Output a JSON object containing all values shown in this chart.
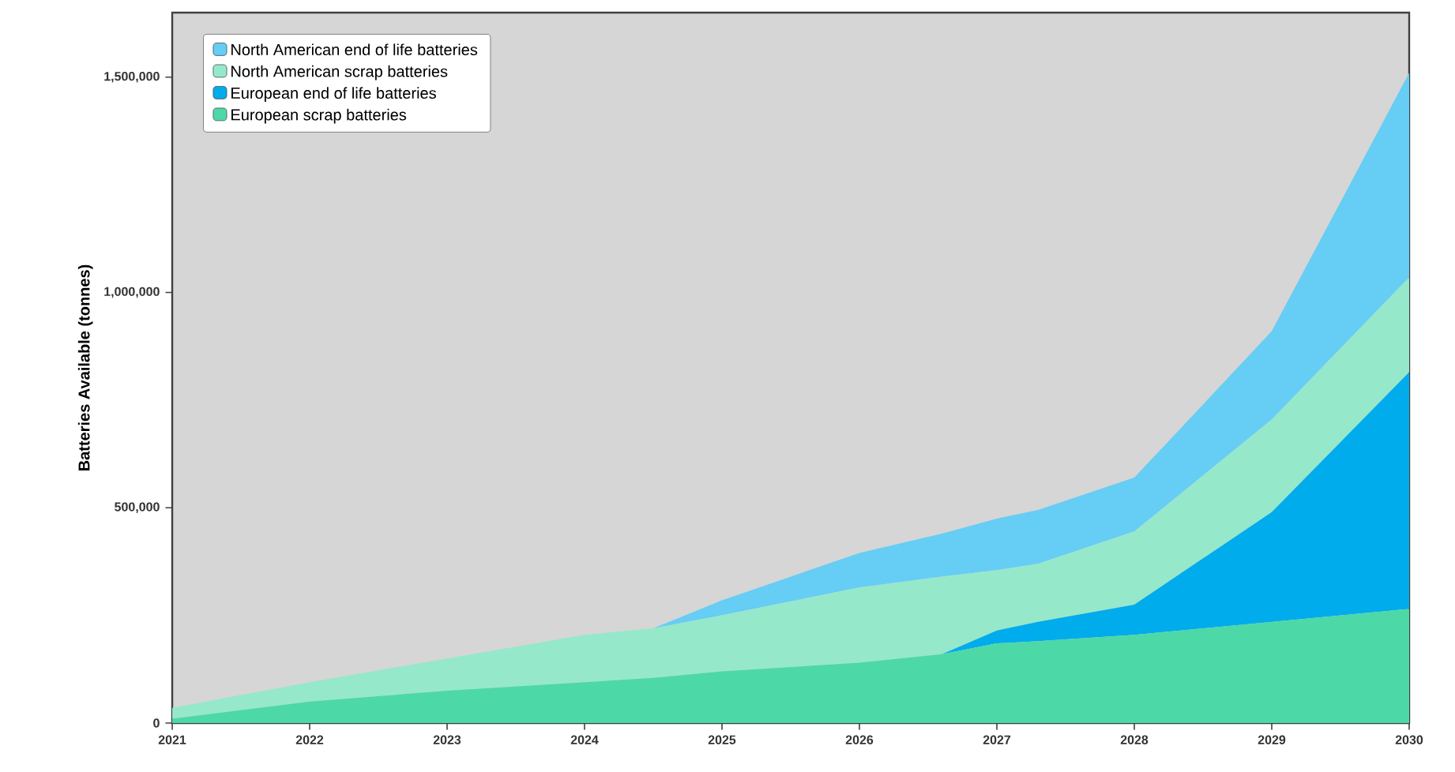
{
  "chart_data": {
    "type": "area",
    "stacked": true,
    "ylabel": "Batteries Available (tonnes)",
    "x": [
      2021,
      2022,
      2023,
      2024,
      2024.5,
      2025,
      2026,
      2026.6,
      2027,
      2027.3,
      2028,
      2029,
      2030
    ],
    "series": [
      {
        "name": "European scrap batteries",
        "color": "#4dd8a8",
        "values": [
          10000,
          50000,
          75000,
          95000,
          105000,
          120000,
          140000,
          160000,
          185000,
          190000,
          205000,
          235000,
          265000
        ]
      },
      {
        "name": "European end of life batteries",
        "color": "#00acec",
        "values": [
          0,
          0,
          0,
          0,
          0,
          0,
          0,
          0,
          30000,
          45000,
          70000,
          255000,
          550000
        ]
      },
      {
        "name": "North American scrap batteries",
        "color": "#96e8cb",
        "values": [
          25000,
          45000,
          75000,
          110000,
          115000,
          130000,
          175000,
          180000,
          140000,
          135000,
          170000,
          215000,
          220000
        ]
      },
      {
        "name": "North American end of life batteries",
        "color": "#66cdf5",
        "values": [
          0,
          0,
          0,
          0,
          0,
          35000,
          80000,
          100000,
          120000,
          125000,
          125000,
          205000,
          475000
        ]
      }
    ],
    "xlim": [
      2021,
      2030
    ],
    "ylim": [
      0,
      1650000
    ],
    "xticks": [
      2021,
      2022,
      2023,
      2024,
      2025,
      2026,
      2027,
      2028,
      2029,
      2030
    ],
    "yticks": [
      0,
      {
        "value": 500000,
        "label": "500,000"
      },
      {
        "value": 1000000,
        "label": "1,000,000"
      },
      {
        "value": 1500000,
        "label": "1,500,000"
      }
    ],
    "legend": "top left",
    "grid": false
  }
}
